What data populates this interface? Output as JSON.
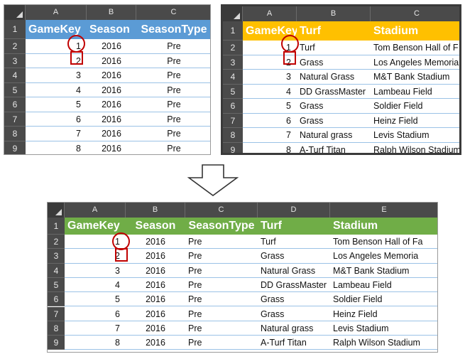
{
  "colors": {
    "blue_header": "#5b9bd5",
    "gold_header": "#ffc000",
    "green_header": "#70ad47",
    "highlight": "#c00000"
  },
  "left_table": {
    "columns": [
      "A",
      "B",
      "C"
    ],
    "header_row": [
      "GameKey",
      "Season",
      "SeasonType"
    ],
    "row_numbers": [
      "1",
      "2",
      "3",
      "4",
      "5",
      "6",
      "7",
      "8",
      "9"
    ],
    "rows": [
      [
        "1",
        "2016",
        "Pre"
      ],
      [
        "2",
        "2016",
        "Pre"
      ],
      [
        "3",
        "2016",
        "Pre"
      ],
      [
        "4",
        "2016",
        "Pre"
      ],
      [
        "5",
        "2016",
        "Pre"
      ],
      [
        "6",
        "2016",
        "Pre"
      ],
      [
        "7",
        "2016",
        "Pre"
      ],
      [
        "8",
        "2016",
        "Pre"
      ]
    ]
  },
  "right_table": {
    "columns": [
      "A",
      "B",
      "C"
    ],
    "header_row": [
      "GameKey",
      "Turf",
      "Stadium"
    ],
    "row_numbers": [
      "1",
      "2",
      "3",
      "4",
      "5",
      "6",
      "7",
      "8",
      "9"
    ],
    "rows": [
      [
        "1",
        "Turf",
        "Tom Benson Hall of F"
      ],
      [
        "2",
        "Grass",
        "Los  Angeles Memoria"
      ],
      [
        "3",
        "Natural Grass",
        "M&T Bank Stadium"
      ],
      [
        "4",
        "DD GrassMaster",
        "Lambeau Field"
      ],
      [
        "5",
        "Grass",
        "Soldier Field"
      ],
      [
        "6",
        "Grass",
        "Heinz Field"
      ],
      [
        "7",
        "Natural grass",
        "Levis Stadium"
      ],
      [
        "8",
        "A-Turf Titan",
        "Ralph Wilson Stadium"
      ]
    ]
  },
  "merged_table": {
    "columns": [
      "A",
      "B",
      "C",
      "D",
      "E"
    ],
    "header_row": [
      "GameKey",
      "Season",
      "SeasonType",
      "Turf",
      "Stadium"
    ],
    "row_numbers": [
      "1",
      "2",
      "3",
      "4",
      "5",
      "6",
      "7",
      "8",
      "9"
    ],
    "rows": [
      [
        "1",
        "2016",
        "Pre",
        "Turf",
        "Tom Benson Hall of Fa"
      ],
      [
        "2",
        "2016",
        "Pre",
        "Grass",
        "Los  Angeles Memoria"
      ],
      [
        "3",
        "2016",
        "Pre",
        "Natural Grass",
        "M&T Bank Stadium"
      ],
      [
        "4",
        "2016",
        "Pre",
        "DD GrassMaster",
        "Lambeau Field"
      ],
      [
        "5",
        "2016",
        "Pre",
        "Grass",
        "Soldier Field"
      ],
      [
        "6",
        "2016",
        "Pre",
        "Grass",
        "Heinz Field"
      ],
      [
        "7",
        "2016",
        "Pre",
        "Natural grass",
        "Levis Stadium"
      ],
      [
        "8",
        "2016",
        "Pre",
        "A-Turf Titan",
        "Ralph Wilson Stadium"
      ]
    ]
  },
  "arrow_icon": "down-arrow-icon"
}
